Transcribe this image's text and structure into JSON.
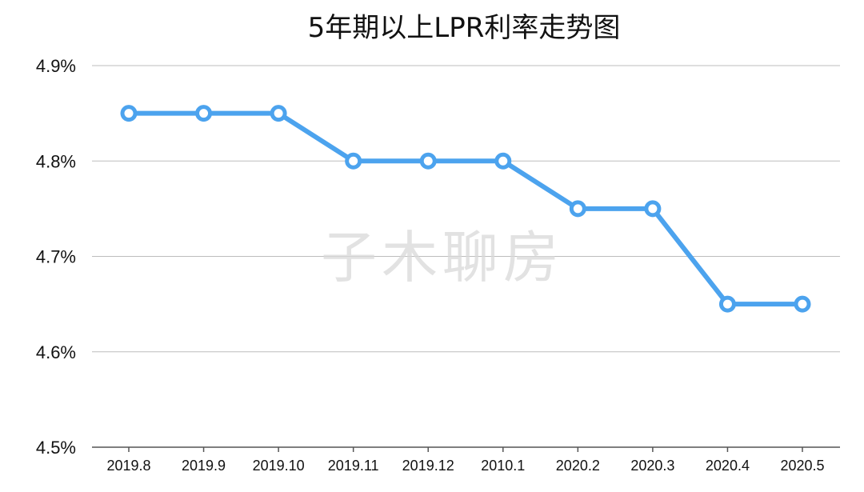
{
  "chart_data": {
    "type": "line",
    "title": "5年期以上LPR利率走势图",
    "categories": [
      "2019.8",
      "2019.9",
      "2019.10",
      "2019.11",
      "2019.12",
      "2010.1",
      "2020.2",
      "2020.3",
      "2020.4",
      "2020.5"
    ],
    "series": [
      {
        "values": [
          4.85,
          4.85,
          4.85,
          4.8,
          4.8,
          4.8,
          4.75,
          4.75,
          4.65,
          4.65
        ]
      }
    ],
    "ylim": [
      4.5,
      4.9
    ],
    "yticks": [
      "4.5%",
      "4.6%",
      "4.7%",
      "4.8%",
      "4.9%"
    ],
    "grid": true,
    "line_color": "#4ca3ee",
    "watermark": "子木聊房"
  }
}
